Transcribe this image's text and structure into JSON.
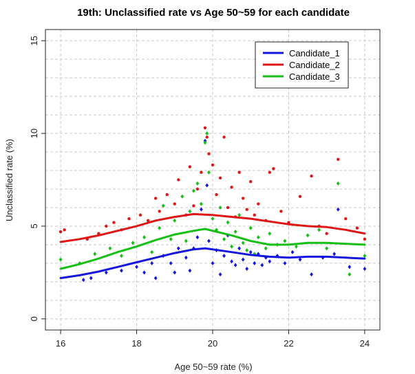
{
  "chart_data": {
    "type": "scatter",
    "title": "19th: Unclassified rate vs Age 50~59 for each candidate",
    "xlabel": "Age 50~59 rate (%)",
    "ylabel": "Unclassified rate (%)",
    "xlim": [
      15.6,
      24.4
    ],
    "ylim": [
      -0.6,
      15.6
    ],
    "x_ticks": [
      "16",
      "18",
      "20",
      "22",
      "24"
    ],
    "y_ticks": [
      "0",
      "5",
      "10",
      "15"
    ],
    "grid": true,
    "legend_position": "top-right",
    "series": [
      {
        "name": "Candidate_1",
        "color": "#1515e0",
        "trend": [
          [
            16.0,
            2.2
          ],
          [
            16.5,
            2.35
          ],
          [
            17.0,
            2.55
          ],
          [
            17.5,
            2.8
          ],
          [
            18.0,
            3.05
          ],
          [
            18.5,
            3.3
          ],
          [
            19.0,
            3.55
          ],
          [
            19.5,
            3.75
          ],
          [
            19.8,
            3.8
          ],
          [
            20.0,
            3.75
          ],
          [
            20.5,
            3.6
          ],
          [
            21.0,
            3.45
          ],
          [
            21.5,
            3.35
          ],
          [
            22.0,
            3.3
          ],
          [
            22.5,
            3.35
          ],
          [
            23.0,
            3.35
          ],
          [
            23.5,
            3.3
          ],
          [
            24.0,
            3.25
          ]
        ],
        "points": [
          [
            16.6,
            2.1
          ],
          [
            16.8,
            2.2
          ],
          [
            17.2,
            2.5
          ],
          [
            17.6,
            2.6
          ],
          [
            18.0,
            2.8
          ],
          [
            18.2,
            2.5
          ],
          [
            18.4,
            3.0
          ],
          [
            18.5,
            2.2
          ],
          [
            18.7,
            3.4
          ],
          [
            18.9,
            3.0
          ],
          [
            19.0,
            2.5
          ],
          [
            19.1,
            3.8
          ],
          [
            19.3,
            3.3
          ],
          [
            19.4,
            2.6
          ],
          [
            19.5,
            3.8
          ],
          [
            19.6,
            4.4
          ],
          [
            19.7,
            5.9
          ],
          [
            19.8,
            9.6
          ],
          [
            19.85,
            7.2
          ],
          [
            19.9,
            4.2
          ],
          [
            20.0,
            3.0
          ],
          [
            20.1,
            3.7
          ],
          [
            20.2,
            2.4
          ],
          [
            20.3,
            3.4
          ],
          [
            20.4,
            4.5
          ],
          [
            20.5,
            3.1
          ],
          [
            20.6,
            2.9
          ],
          [
            20.7,
            3.8
          ],
          [
            20.8,
            3.2
          ],
          [
            20.9,
            2.7
          ],
          [
            21.0,
            3.6
          ],
          [
            21.1,
            3.0
          ],
          [
            21.2,
            3.5
          ],
          [
            21.3,
            2.9
          ],
          [
            21.4,
            3.3
          ],
          [
            21.5,
            3.1
          ],
          [
            21.7,
            3.4
          ],
          [
            21.9,
            3.0
          ],
          [
            22.1,
            3.6
          ],
          [
            22.3,
            3.2
          ],
          [
            22.6,
            2.4
          ],
          [
            22.9,
            3.3
          ],
          [
            23.2,
            3.5
          ],
          [
            23.3,
            5.9
          ],
          [
            23.6,
            2.8
          ],
          [
            24.0,
            2.7
          ]
        ]
      },
      {
        "name": "Candidate_2",
        "color": "#e01515",
        "trend": [
          [
            16.0,
            4.15
          ],
          [
            16.5,
            4.3
          ],
          [
            17.0,
            4.5
          ],
          [
            17.5,
            4.75
          ],
          [
            18.0,
            5.0
          ],
          [
            18.5,
            5.3
          ],
          [
            19.0,
            5.5
          ],
          [
            19.5,
            5.65
          ],
          [
            20.0,
            5.6
          ],
          [
            20.5,
            5.5
          ],
          [
            21.0,
            5.4
          ],
          [
            21.5,
            5.25
          ],
          [
            22.0,
            5.1
          ],
          [
            22.5,
            5.0
          ],
          [
            23.0,
            4.95
          ],
          [
            23.5,
            4.8
          ],
          [
            24.0,
            4.6
          ]
        ],
        "points": [
          [
            16.0,
            4.7
          ],
          [
            16.1,
            4.8
          ],
          [
            16.7,
            4.3
          ],
          [
            17.0,
            4.6
          ],
          [
            17.2,
            5.0
          ],
          [
            17.4,
            5.2
          ],
          [
            17.6,
            4.8
          ],
          [
            17.8,
            5.4
          ],
          [
            18.1,
            5.6
          ],
          [
            18.3,
            5.3
          ],
          [
            18.5,
            6.5
          ],
          [
            18.6,
            5.8
          ],
          [
            18.8,
            6.7
          ],
          [
            19.0,
            6.2
          ],
          [
            19.1,
            7.5
          ],
          [
            19.3,
            5.6
          ],
          [
            19.4,
            8.2
          ],
          [
            19.5,
            6.1
          ],
          [
            19.6,
            7.0
          ],
          [
            19.7,
            7.9
          ],
          [
            19.8,
            10.3
          ],
          [
            19.85,
            9.8
          ],
          [
            19.9,
            8.9
          ],
          [
            20.0,
            8.3
          ],
          [
            20.1,
            6.7
          ],
          [
            20.2,
            7.6
          ],
          [
            20.3,
            9.8
          ],
          [
            20.4,
            6.0
          ],
          [
            20.5,
            7.1
          ],
          [
            20.6,
            5.5
          ],
          [
            20.7,
            7.9
          ],
          [
            20.8,
            6.5
          ],
          [
            20.9,
            5.9
          ],
          [
            21.0,
            7.4
          ],
          [
            21.1,
            5.6
          ],
          [
            21.2,
            6.2
          ],
          [
            21.4,
            5.3
          ],
          [
            21.5,
            7.9
          ],
          [
            21.6,
            8.1
          ],
          [
            21.8,
            5.8
          ],
          [
            22.0,
            5.2
          ],
          [
            22.3,
            6.6
          ],
          [
            22.6,
            7.7
          ],
          [
            22.8,
            5.0
          ],
          [
            23.0,
            4.6
          ],
          [
            23.3,
            8.6
          ],
          [
            23.5,
            5.4
          ],
          [
            23.8,
            4.9
          ],
          [
            24.0,
            4.3
          ]
        ]
      },
      {
        "name": "Candidate_3",
        "color": "#15c015",
        "trend": [
          [
            16.0,
            2.7
          ],
          [
            16.5,
            2.95
          ],
          [
            17.0,
            3.25
          ],
          [
            17.5,
            3.6
          ],
          [
            18.0,
            3.9
          ],
          [
            18.5,
            4.25
          ],
          [
            19.0,
            4.55
          ],
          [
            19.5,
            4.75
          ],
          [
            19.8,
            4.85
          ],
          [
            20.0,
            4.75
          ],
          [
            20.5,
            4.5
          ],
          [
            21.0,
            4.2
          ],
          [
            21.5,
            4.0
          ],
          [
            22.0,
            4.0
          ],
          [
            22.5,
            4.1
          ],
          [
            23.0,
            4.1
          ],
          [
            23.5,
            4.05
          ],
          [
            24.0,
            4.0
          ]
        ],
        "points": [
          [
            16.0,
            3.2
          ],
          [
            16.5,
            3.0
          ],
          [
            16.9,
            3.5
          ],
          [
            17.3,
            3.8
          ],
          [
            17.6,
            3.4
          ],
          [
            17.9,
            4.1
          ],
          [
            18.2,
            4.4
          ],
          [
            18.4,
            3.6
          ],
          [
            18.6,
            4.9
          ],
          [
            18.7,
            6.1
          ],
          [
            18.9,
            4.3
          ],
          [
            19.0,
            5.3
          ],
          [
            19.2,
            6.6
          ],
          [
            19.3,
            4.2
          ],
          [
            19.4,
            5.8
          ],
          [
            19.5,
            6.9
          ],
          [
            19.6,
            7.3
          ],
          [
            19.7,
            6.2
          ],
          [
            19.8,
            9.5
          ],
          [
            19.85,
            10.0
          ],
          [
            19.9,
            7.9
          ],
          [
            20.0,
            5.4
          ],
          [
            20.1,
            4.8
          ],
          [
            20.2,
            6.0
          ],
          [
            20.3,
            4.3
          ],
          [
            20.4,
            5.2
          ],
          [
            20.5,
            3.9
          ],
          [
            20.6,
            4.7
          ],
          [
            20.7,
            5.6
          ],
          [
            20.8,
            4.1
          ],
          [
            20.9,
            3.7
          ],
          [
            21.0,
            4.9
          ],
          [
            21.1,
            3.5
          ],
          [
            21.2,
            4.4
          ],
          [
            21.4,
            3.8
          ],
          [
            21.5,
            4.6
          ],
          [
            21.7,
            4.0
          ],
          [
            21.9,
            4.2
          ],
          [
            22.2,
            3.9
          ],
          [
            22.5,
            4.5
          ],
          [
            22.8,
            4.8
          ],
          [
            23.0,
            3.8
          ],
          [
            23.3,
            7.3
          ],
          [
            23.6,
            2.4
          ],
          [
            24.0,
            3.4
          ]
        ]
      }
    ]
  }
}
